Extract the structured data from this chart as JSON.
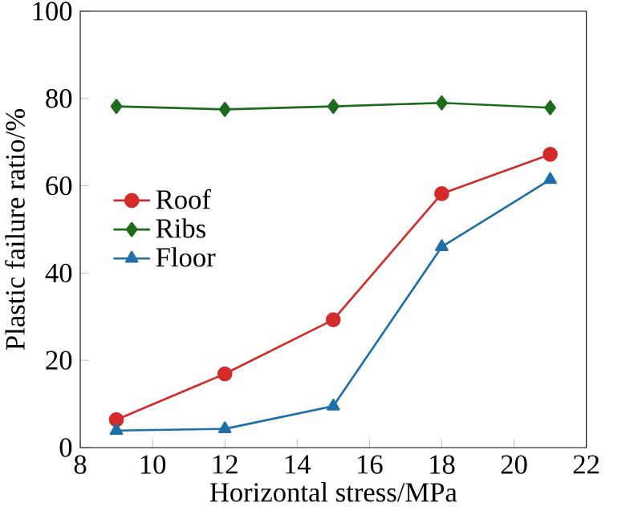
{
  "chart_data": {
    "type": "line",
    "xlabel": "Horizontal stress/MPa",
    "ylabel": "Plastic failure ratio/%",
    "x": [
      9,
      12,
      15,
      18,
      21
    ],
    "series": [
      {
        "name": "Roof",
        "color": "#d42a2a",
        "marker": "circle",
        "values": [
          6.4,
          16.9,
          29.3,
          58.2,
          67.2
        ]
      },
      {
        "name": "Ribs",
        "color": "#1e6b1e",
        "marker": "diamond",
        "values": [
          78.2,
          77.5,
          78.2,
          79.0,
          77.9
        ]
      },
      {
        "name": "Floor",
        "color": "#1f6fa8",
        "marker": "triangle",
        "values": [
          3.9,
          4.3,
          9.5,
          46,
          61.4
        ]
      }
    ],
    "xlim": [
      8,
      22
    ],
    "xticks": [
      8,
      10,
      12,
      14,
      16,
      18,
      20,
      22
    ],
    "ylim": [
      0,
      100
    ],
    "yticks": [
      0,
      20,
      40,
      60,
      80,
      100
    ],
    "grid": false,
    "legend": "left",
    "line_style": "solid"
  }
}
